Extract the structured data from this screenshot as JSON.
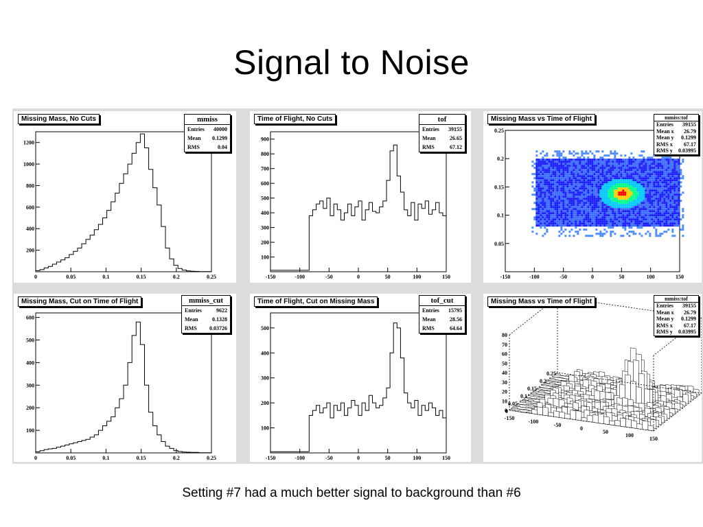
{
  "slide": {
    "title": "Signal to Noise",
    "caption": "Setting #7 had a much better signal to background than #6"
  },
  "colors": {
    "line": "#000000",
    "stats_shadow": "#000000",
    "heat_low": "#1a1aff",
    "heat_mid": "#00c8ff",
    "heat_high": "#ff0000"
  },
  "panels": [
    {
      "title": "Missing Mass, No Cuts",
      "stats": {
        "name": "mmiss",
        "rows": [
          [
            "Entries",
            "40000"
          ],
          [
            "Mean",
            "0.1299"
          ],
          [
            "RMS",
            "0.04"
          ]
        ]
      },
      "chart_data": {
        "type": "bar",
        "xlim": [
          0,
          0.25
        ],
        "ylim": [
          0,
          1300
        ],
        "xticks": [
          {
            "v": 0,
            "t": "0"
          },
          {
            "v": 0.05,
            "t": "0.05"
          },
          {
            "v": 0.1,
            "t": "0.1"
          },
          {
            "v": 0.15,
            "t": "0.15"
          },
          {
            "v": 0.2,
            "t": "0.2"
          },
          {
            "v": 0.25,
            "t": "0.25"
          }
        ],
        "yticks": [
          {
            "v": 200,
            "t": "200"
          },
          {
            "v": 400,
            "t": "400"
          },
          {
            "v": 600,
            "t": "600"
          },
          {
            "v": 800,
            "t": "800"
          },
          {
            "v": 1000,
            "t": "1000"
          },
          {
            "v": 1200,
            "t": "1200"
          }
        ],
        "values": [
          10,
          20,
          35,
          50,
          70,
          90,
          110,
          130,
          160,
          190,
          220,
          260,
          300,
          340,
          390,
          440,
          500,
          570,
          650,
          730,
          820,
          910,
          1000,
          1100,
          1200,
          1280,
          1150,
          950,
          780,
          620,
          420,
          220,
          120,
          60,
          30,
          15,
          8,
          5,
          3,
          2,
          2,
          1
        ]
      }
    },
    {
      "title": "Time of Flight, No Cuts",
      "stats": {
        "name": "tof",
        "rows": [
          [
            "Entries",
            "39155"
          ],
          [
            "Mean",
            "26.65"
          ],
          [
            "RMS",
            "67.12"
          ]
        ]
      },
      "chart_data": {
        "type": "bar",
        "xlim": [
          -150,
          150
        ],
        "ylim": [
          0,
          950
        ],
        "xticks": [
          {
            "v": -150,
            "t": "-150"
          },
          {
            "v": -100,
            "t": "-100"
          },
          {
            "v": -50,
            "t": "-50"
          },
          {
            "v": 0,
            "t": "0"
          },
          {
            "v": 50,
            "t": "50"
          },
          {
            "v": 100,
            "t": "100"
          },
          {
            "v": 150,
            "t": "150"
          }
        ],
        "yticks": [
          {
            "v": 100,
            "t": "100"
          },
          {
            "v": 200,
            "t": "200"
          },
          {
            "v": 300,
            "t": "300"
          },
          {
            "v": 400,
            "t": "400"
          },
          {
            "v": 500,
            "t": "500"
          },
          {
            "v": 600,
            "t": "600"
          },
          {
            "v": 700,
            "t": "700"
          },
          {
            "v": 800,
            "t": "800"
          },
          {
            "v": 900,
            "t": "900"
          }
        ],
        "values": [
          10,
          10,
          10,
          10,
          10,
          10,
          10,
          10,
          10,
          10,
          10,
          380,
          420,
          460,
          480,
          430,
          500,
          380,
          460,
          420,
          350,
          400,
          460,
          380,
          440,
          480,
          350,
          420,
          470,
          410,
          400,
          440,
          480,
          620,
          820,
          860,
          650,
          540,
          420,
          380,
          470,
          350,
          460,
          430,
          480,
          390,
          420,
          470,
          400,
          380
        ]
      }
    },
    {
      "title": "Missing Mass vs Time of Flight",
      "stats": {
        "name": "mmiss:tof",
        "rows": [
          [
            "Entries",
            "39155"
          ],
          [
            "Mean x",
            "26.79"
          ],
          [
            "Mean y",
            "0.1299"
          ],
          [
            "RMS x",
            "67.17"
          ],
          [
            "RMS y",
            "0.03995"
          ]
        ]
      },
      "chart_data": {
        "type": "heatmap",
        "xlim": [
          -150,
          150
        ],
        "ylim": [
          0,
          0.25
        ],
        "xticks": [
          {
            "v": -150,
            "t": "-150"
          },
          {
            "v": -100,
            "t": "-100"
          },
          {
            "v": -50,
            "t": "-50"
          },
          {
            "v": 0,
            "t": "0"
          },
          {
            "v": 50,
            "t": "50"
          },
          {
            "v": 100,
            "t": "100"
          },
          {
            "v": 150,
            "t": "150"
          }
        ],
        "yticks": [
          {
            "v": 0.05,
            "t": "0.05"
          },
          {
            "v": 0.1,
            "t": "0.1"
          },
          {
            "v": 0.15,
            "t": "0.15"
          },
          {
            "v": 0.2,
            "t": "0.2"
          },
          {
            "v": 0.25,
            "t": "0.25"
          }
        ],
        "band": {
          "x": [
            -100,
            150
          ],
          "y": [
            0.08,
            0.2
          ]
        },
        "peak": {
          "x": 50,
          "y": 0.14
        }
      }
    },
    {
      "title": "Missing Mass, Cut on Time of Flight",
      "stats": {
        "name": "mmiss_cut",
        "rows": [
          [
            "Entries",
            "9622"
          ],
          [
            "Mean",
            "0.1328"
          ],
          [
            "RMS",
            "0.03726"
          ]
        ]
      },
      "chart_data": {
        "type": "bar",
        "xlim": [
          0,
          0.25
        ],
        "ylim": [
          0,
          620
        ],
        "xticks": [
          {
            "v": 0,
            "t": "0"
          },
          {
            "v": 0.05,
            "t": "0.05"
          },
          {
            "v": 0.1,
            "t": "0.1"
          },
          {
            "v": 0.15,
            "t": "0.15"
          },
          {
            "v": 0.2,
            "t": "0.2"
          },
          {
            "v": 0.25,
            "t": "0.25"
          }
        ],
        "yticks": [
          {
            "v": 100,
            "t": "100"
          },
          {
            "v": 200,
            "t": "200"
          },
          {
            "v": 300,
            "t": "300"
          },
          {
            "v": 400,
            "t": "400"
          },
          {
            "v": 500,
            "t": "500"
          },
          {
            "v": 600,
            "t": "600"
          }
        ],
        "values": [
          5,
          10,
          15,
          18,
          20,
          25,
          30,
          35,
          40,
          45,
          50,
          55,
          60,
          70,
          80,
          100,
          120,
          140,
          160,
          200,
          240,
          300,
          400,
          520,
          580,
          480,
          300,
          180,
          120,
          80,
          50,
          30,
          20,
          10,
          6,
          4,
          3,
          2,
          2,
          1,
          1,
          1
        ]
      }
    },
    {
      "title": "Time of Flight, Cut on Missing Mass",
      "stats": {
        "name": "tof_cut",
        "rows": [
          [
            "Entries",
            "15795"
          ],
          [
            "Mean",
            "28.56"
          ],
          [
            "RMS",
            "64.64"
          ]
        ]
      },
      "chart_data": {
        "type": "bar",
        "xlim": [
          -150,
          150
        ],
        "ylim": [
          0,
          560
        ],
        "xticks": [
          {
            "v": -150,
            "t": "-150"
          },
          {
            "v": -100,
            "t": "-100"
          },
          {
            "v": -50,
            "t": "-50"
          },
          {
            "v": 0,
            "t": "0"
          },
          {
            "v": 50,
            "t": "50"
          },
          {
            "v": 100,
            "t": "100"
          },
          {
            "v": 150,
            "t": "150"
          }
        ],
        "yticks": [
          {
            "v": 100,
            "t": "100"
          },
          {
            "v": 200,
            "t": "200"
          },
          {
            "v": 300,
            "t": "300"
          },
          {
            "v": 400,
            "t": "400"
          },
          {
            "v": 500,
            "t": "500"
          }
        ],
        "values": [
          5,
          5,
          5,
          5,
          5,
          5,
          5,
          5,
          5,
          5,
          5,
          150,
          170,
          190,
          160,
          180,
          200,
          140,
          190,
          170,
          200,
          150,
          180,
          210,
          190,
          150,
          200,
          170,
          230,
          200,
          180,
          190,
          220,
          260,
          400,
          520,
          500,
          380,
          240,
          200,
          180,
          210,
          150,
          190,
          170,
          200,
          180,
          150,
          170,
          140
        ]
      }
    },
    {
      "title": "Missing Mass vs Time of Flight",
      "stats": {
        "name": "mmiss:tof",
        "rows": [
          [
            "Entries",
            "39155"
          ],
          [
            "Mean x",
            "26.79"
          ],
          [
            "Mean y",
            "0.1299"
          ],
          [
            "RMS x",
            "67.17"
          ],
          [
            "RMS y",
            "0.03995"
          ]
        ]
      },
      "chart_data": {
        "type": "surface3d",
        "zlim": [
          0,
          80
        ],
        "zticks": [
          {
            "v": 0,
            "t": "0"
          },
          {
            "v": 10,
            "t": "10"
          },
          {
            "v": 20,
            "t": "20"
          },
          {
            "v": 30,
            "t": "30"
          },
          {
            "v": 40,
            "t": "40"
          },
          {
            "v": 50,
            "t": "50"
          },
          {
            "v": 60,
            "t": "60"
          },
          {
            "v": 70,
            "t": "70"
          },
          {
            "v": 80,
            "t": "80"
          }
        ],
        "xticks": [
          {
            "t": "-150"
          },
          {
            "t": "-100"
          },
          {
            "t": "-50"
          },
          {
            "t": "0"
          },
          {
            "t": "50"
          },
          {
            "t": "100"
          },
          {
            "t": "150"
          }
        ],
        "yticks": [
          {
            "t": "0.25"
          },
          {
            "t": "0.2"
          },
          {
            "t": "0.15"
          },
          {
            "t": "0.1"
          },
          {
            "t": "0.05"
          },
          {
            "t": "0"
          }
        ]
      }
    }
  ]
}
